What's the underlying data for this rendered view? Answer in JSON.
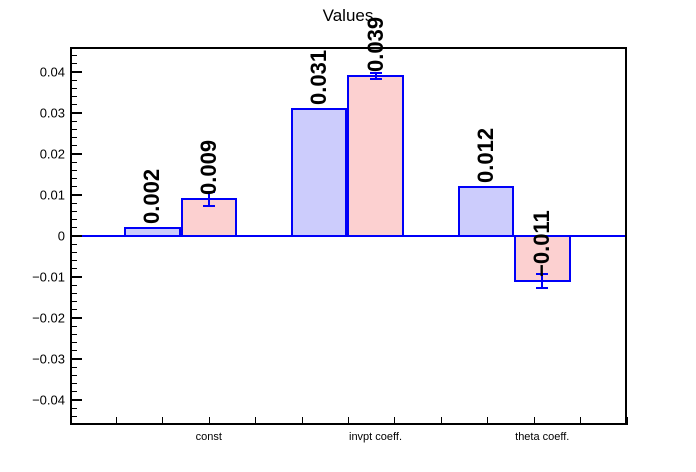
{
  "chart_data": {
    "type": "bar",
    "title": "Values",
    "categories": [
      "const",
      "invpt coeff.",
      "theta coeff."
    ],
    "series": [
      {
        "name": "series-blue",
        "fill": "#ccccfc",
        "values": [
          0.002,
          0.031,
          0.012
        ],
        "value_labels": [
          "0.002",
          "0.031",
          "0.012"
        ],
        "errors": [
          0,
          0,
          0
        ]
      },
      {
        "name": "series-pink",
        "fill": "#fcd0d0",
        "values": [
          0.009,
          0.039,
          -0.011
        ],
        "value_labels": [
          "0.009",
          "0.039",
          "−0.011"
        ],
        "errors": [
          0.002,
          0.001,
          0.002
        ]
      }
    ],
    "colors": {
      "bar_border": "#0000f8",
      "error_bar": "#0000f8",
      "zero_line": "#0000f8",
      "frame": "#000000",
      "text": "#000000"
    },
    "y_axis": {
      "range": [
        -0.0461,
        0.0461
      ],
      "ticks": [
        {
          "v": 0.04,
          "label": "0.04"
        },
        {
          "v": 0.03,
          "label": "0.03"
        },
        {
          "v": 0.02,
          "label": "0.02"
        },
        {
          "v": 0.01,
          "label": "0.01"
        },
        {
          "v": 0,
          "label": "0"
        },
        {
          "v": -0.01,
          "label": "−0.01"
        },
        {
          "v": -0.02,
          "label": "−0.02"
        },
        {
          "v": -0.03,
          "label": "−0.03"
        },
        {
          "v": -0.04,
          "label": "−0.04"
        }
      ],
      "minor_step": 0.002,
      "minor_extent": 0.044
    },
    "x_axis": {
      "minor_divisions": 12
    },
    "grid": false,
    "legend": false
  }
}
